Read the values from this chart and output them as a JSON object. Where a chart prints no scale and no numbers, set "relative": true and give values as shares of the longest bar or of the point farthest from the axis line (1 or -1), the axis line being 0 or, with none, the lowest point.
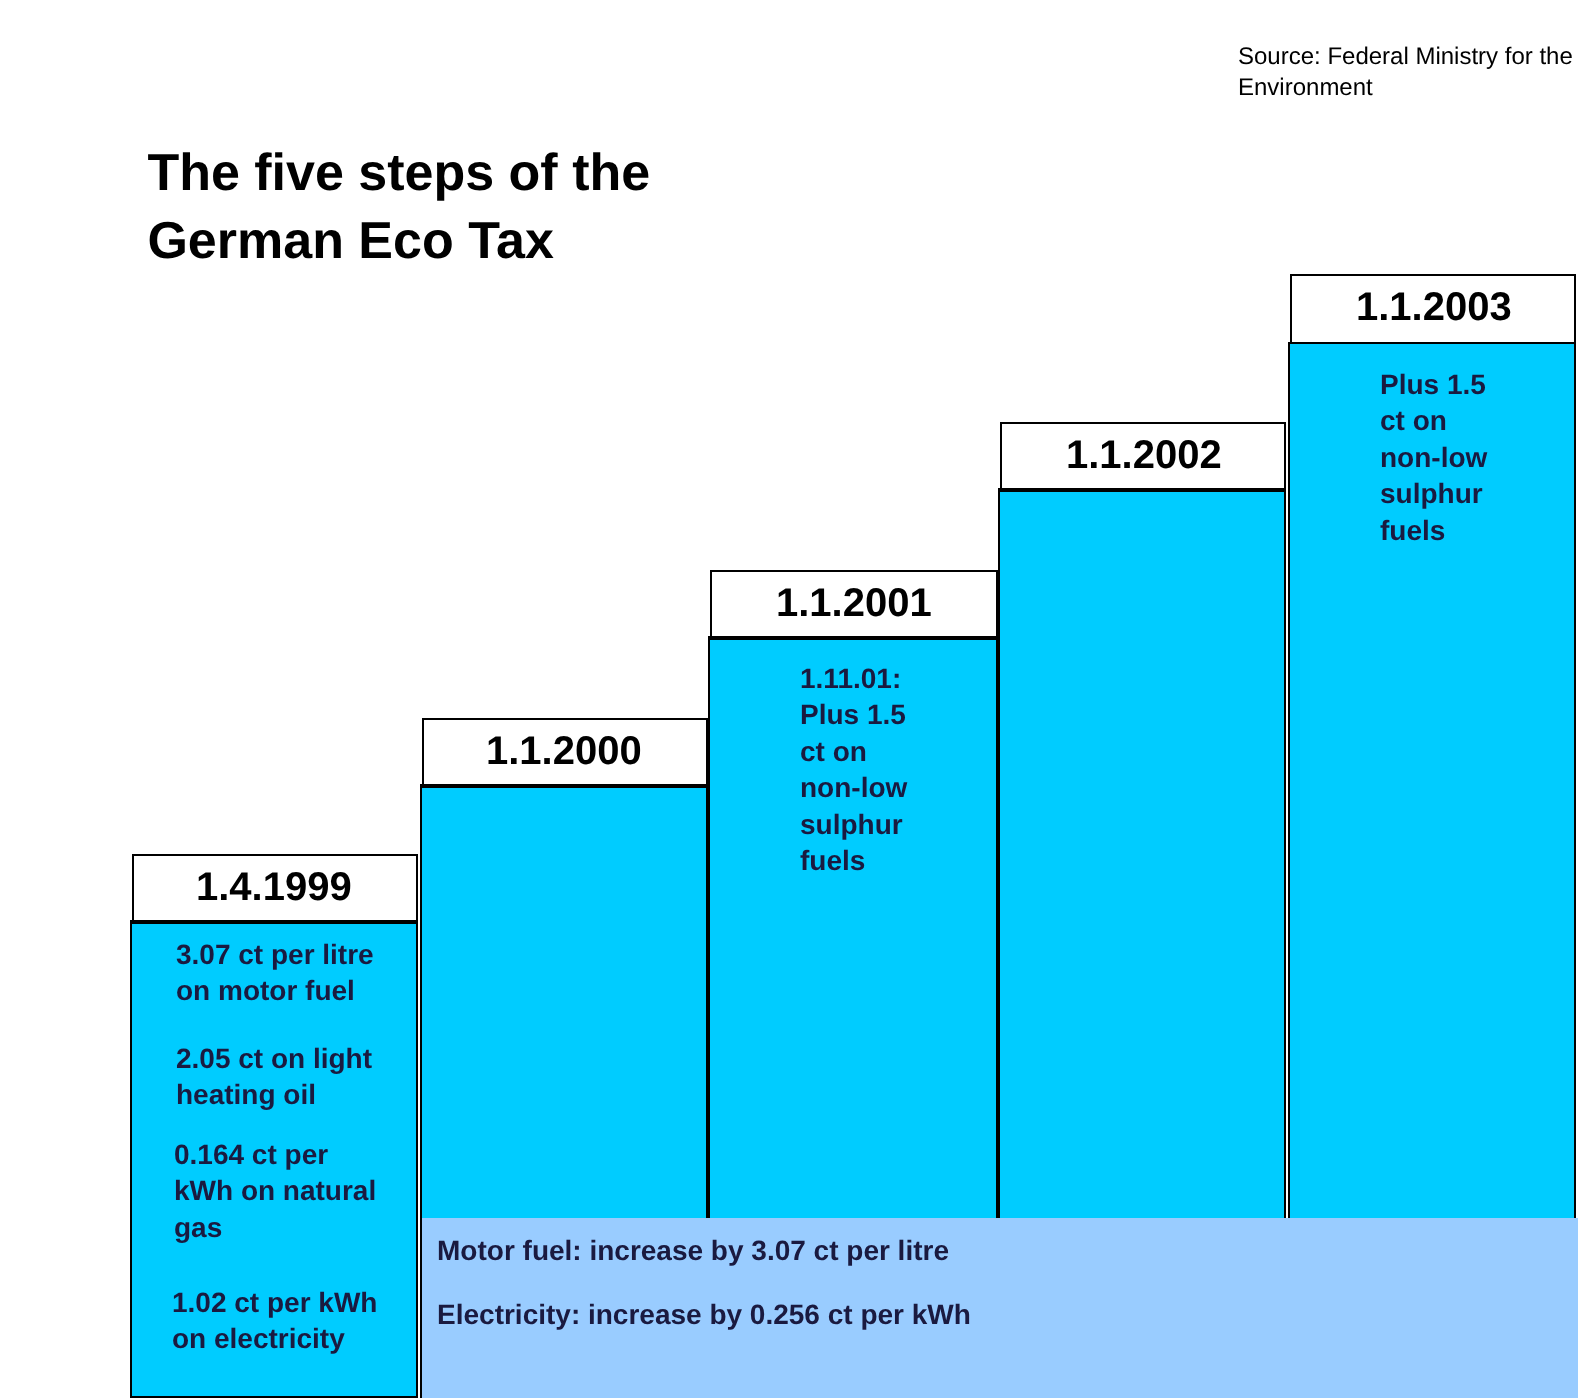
{
  "chart_data": {
    "type": "bar",
    "title": "The five steps of the\nGerman Eco Tax",
    "categories": [
      "1.4.1999",
      "1.1.2000",
      "1.1.2001",
      "1.1.2002",
      "1.1.2003"
    ],
    "values": [
      0.45,
      0.58,
      0.72,
      0.86,
      1
    ],
    "color": "#00ccff",
    "relative": true,
    "annotations": [
      "Source: Federal Ministry for the\nEnvironment",
      "3.07 ct per litre\non motor fuel",
      "2.05 ct on light\nheating oil",
      "0.164 ct per\nkWh on natural\ngas",
      "1.02 ct per kWh\non electricity",
      "1.11.01:\nPlus 1.5\nct on\nnon-low\nsulphur\nfuels",
      "Plus 1.5\nct on\nnon-low\nsulphur\nfuels",
      "Motor fuel: increase by 3.07 ct per litre\n\nElectricity: increase by 0.256 ct per kWh"
    ]
  }
}
